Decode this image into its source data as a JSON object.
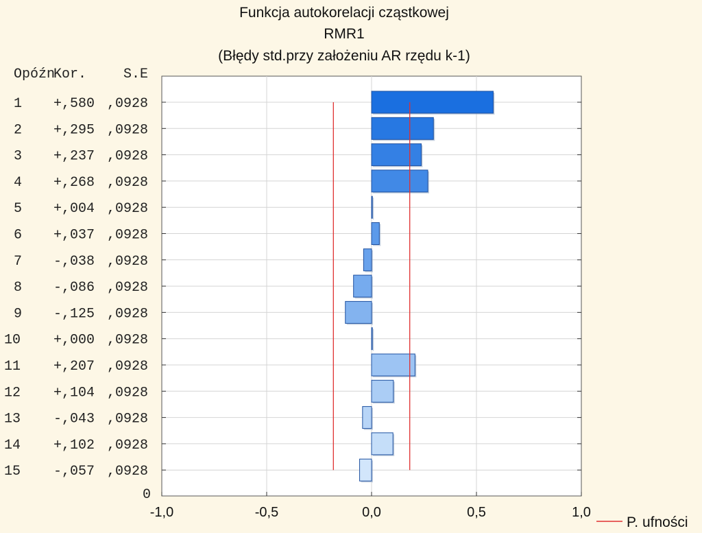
{
  "chart_data": {
    "type": "bar",
    "orientation": "horizontal",
    "title": "Funkcja autokorelacji cząstkowej",
    "subtitle": "RMR1",
    "subtitle2": "(Błędy std.przy założeniu AR rzędu k-1)",
    "table_headers": {
      "lag": "Opóźn",
      "corr": "Kor.",
      "se": "S.E"
    },
    "lags": [
      "1",
      "2",
      "3",
      "4",
      "5",
      "6",
      "7",
      "8",
      "9",
      "10",
      "11",
      "12",
      "13",
      "14",
      "15"
    ],
    "corr_labels": [
      "+,580",
      "+,295",
      "+,237",
      "+,268",
      "+,004",
      "+,037",
      "-,038",
      "-,086",
      "-,125",
      "+,000",
      "+,207",
      "+,104",
      "-,043",
      "+,102",
      "-,057"
    ],
    "se_labels": [
      ",0928",
      ",0928",
      ",0928",
      ",0928",
      ",0928",
      ",0928",
      ",0928",
      ",0928",
      ",0928",
      ",0928",
      ",0928",
      ",0928",
      ",0928",
      ",0928",
      ",0928"
    ],
    "values": [
      0.58,
      0.295,
      0.237,
      0.268,
      0.004,
      0.037,
      -0.038,
      -0.086,
      -0.125,
      0.0,
      0.207,
      0.104,
      -0.043,
      0.102,
      -0.057
    ],
    "confidence_limit": 0.182,
    "xlim": [
      -1.0,
      1.0
    ],
    "x_ticks": [
      -1.0,
      -0.5,
      0.0,
      0.5,
      1.0
    ],
    "x_tick_labels": [
      "-1,0",
      "-0,5",
      "0,0",
      "0,5",
      "1,0"
    ],
    "y_zero_label": "0",
    "legend": {
      "label": "P. ufności",
      "color": "#e03030",
      "placement": "bottom-right"
    },
    "grid": true,
    "colors": {
      "bar_dark": "#1a6fe0",
      "bar_light": "#d2e6fb",
      "bar_edge": "#1e50a0",
      "conf_line": "#e03030",
      "background": "#fdf7e6"
    }
  }
}
